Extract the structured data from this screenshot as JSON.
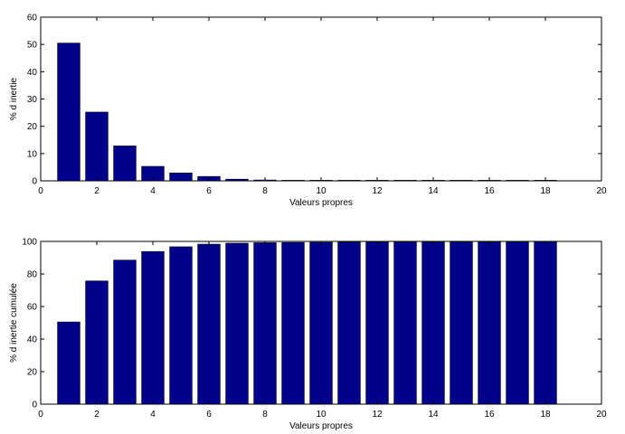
{
  "chart_data": [
    {
      "type": "bar",
      "title": "",
      "xlabel": "Valeurs propres",
      "ylabel": "% d inertie",
      "xlim": [
        0,
        20
      ],
      "ylim": [
        0,
        60
      ],
      "xticks": [
        "0",
        "2",
        "4",
        "6",
        "8",
        "10",
        "12",
        "14",
        "16",
        "18",
        "20"
      ],
      "yticks": [
        "0",
        "10",
        "20",
        "30",
        "40",
        "50",
        "60"
      ],
      "grid": false,
      "bar_color": "#00008B",
      "x": [
        1,
        2,
        3,
        4,
        5,
        6,
        7,
        8,
        9,
        10,
        11,
        12,
        13,
        14,
        15,
        16,
        17,
        18
      ],
      "values": [
        50.5,
        25.2,
        12.8,
        5.3,
        2.9,
        1.6,
        0.6,
        0.3,
        0.15,
        0.1,
        0.08,
        0.06,
        0.05,
        0.04,
        0.03,
        0.02,
        0.02,
        0.01
      ]
    },
    {
      "type": "bar",
      "title": "",
      "xlabel": "Valeurs propres",
      "ylabel": "% d inertie cumulée",
      "xlim": [
        0,
        20
      ],
      "ylim": [
        0,
        100
      ],
      "xticks": [
        "0",
        "2",
        "4",
        "6",
        "8",
        "10",
        "12",
        "14",
        "16",
        "18",
        "20"
      ],
      "yticks": [
        "0",
        "20",
        "40",
        "60",
        "80",
        "100"
      ],
      "grid": false,
      "bar_color": "#00008B",
      "x": [
        1,
        2,
        3,
        4,
        5,
        6,
        7,
        8,
        9,
        10,
        11,
        12,
        13,
        14,
        15,
        16,
        17,
        18
      ],
      "values": [
        50.5,
        75.7,
        88.5,
        93.8,
        96.7,
        98.3,
        98.9,
        99.2,
        99.35,
        99.45,
        99.53,
        99.59,
        99.64,
        99.68,
        99.71,
        99.73,
        99.75,
        99.76
      ]
    }
  ]
}
